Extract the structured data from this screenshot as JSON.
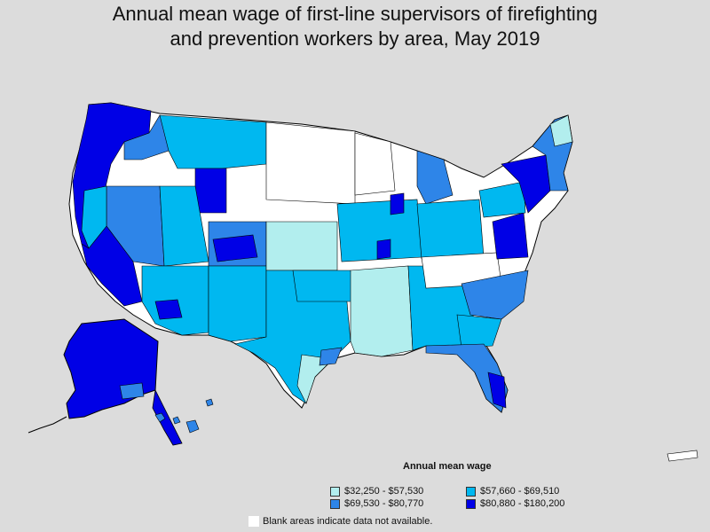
{
  "title": {
    "line1": "Annual mean wage of first-line supervisors of firefighting",
    "line2": "and prevention workers by area, May 2019"
  },
  "legend": {
    "title": "Annual mean wage",
    "items": [
      {
        "label": "$32,250 - $57,530",
        "color": "#b2eeee"
      },
      {
        "label": "$57,660 - $69,510",
        "color": "#00b8f0"
      },
      {
        "label": "$69,530 - $80,770",
        "color": "#2e85e8"
      },
      {
        "label": "$80,880 - $180,200",
        "color": "#0000e6"
      }
    ],
    "no_data_color": "#ffffff"
  },
  "note": "Blank areas indicate data not available.",
  "colors": {
    "background": "#dcdcdc",
    "border": "#000000"
  }
}
